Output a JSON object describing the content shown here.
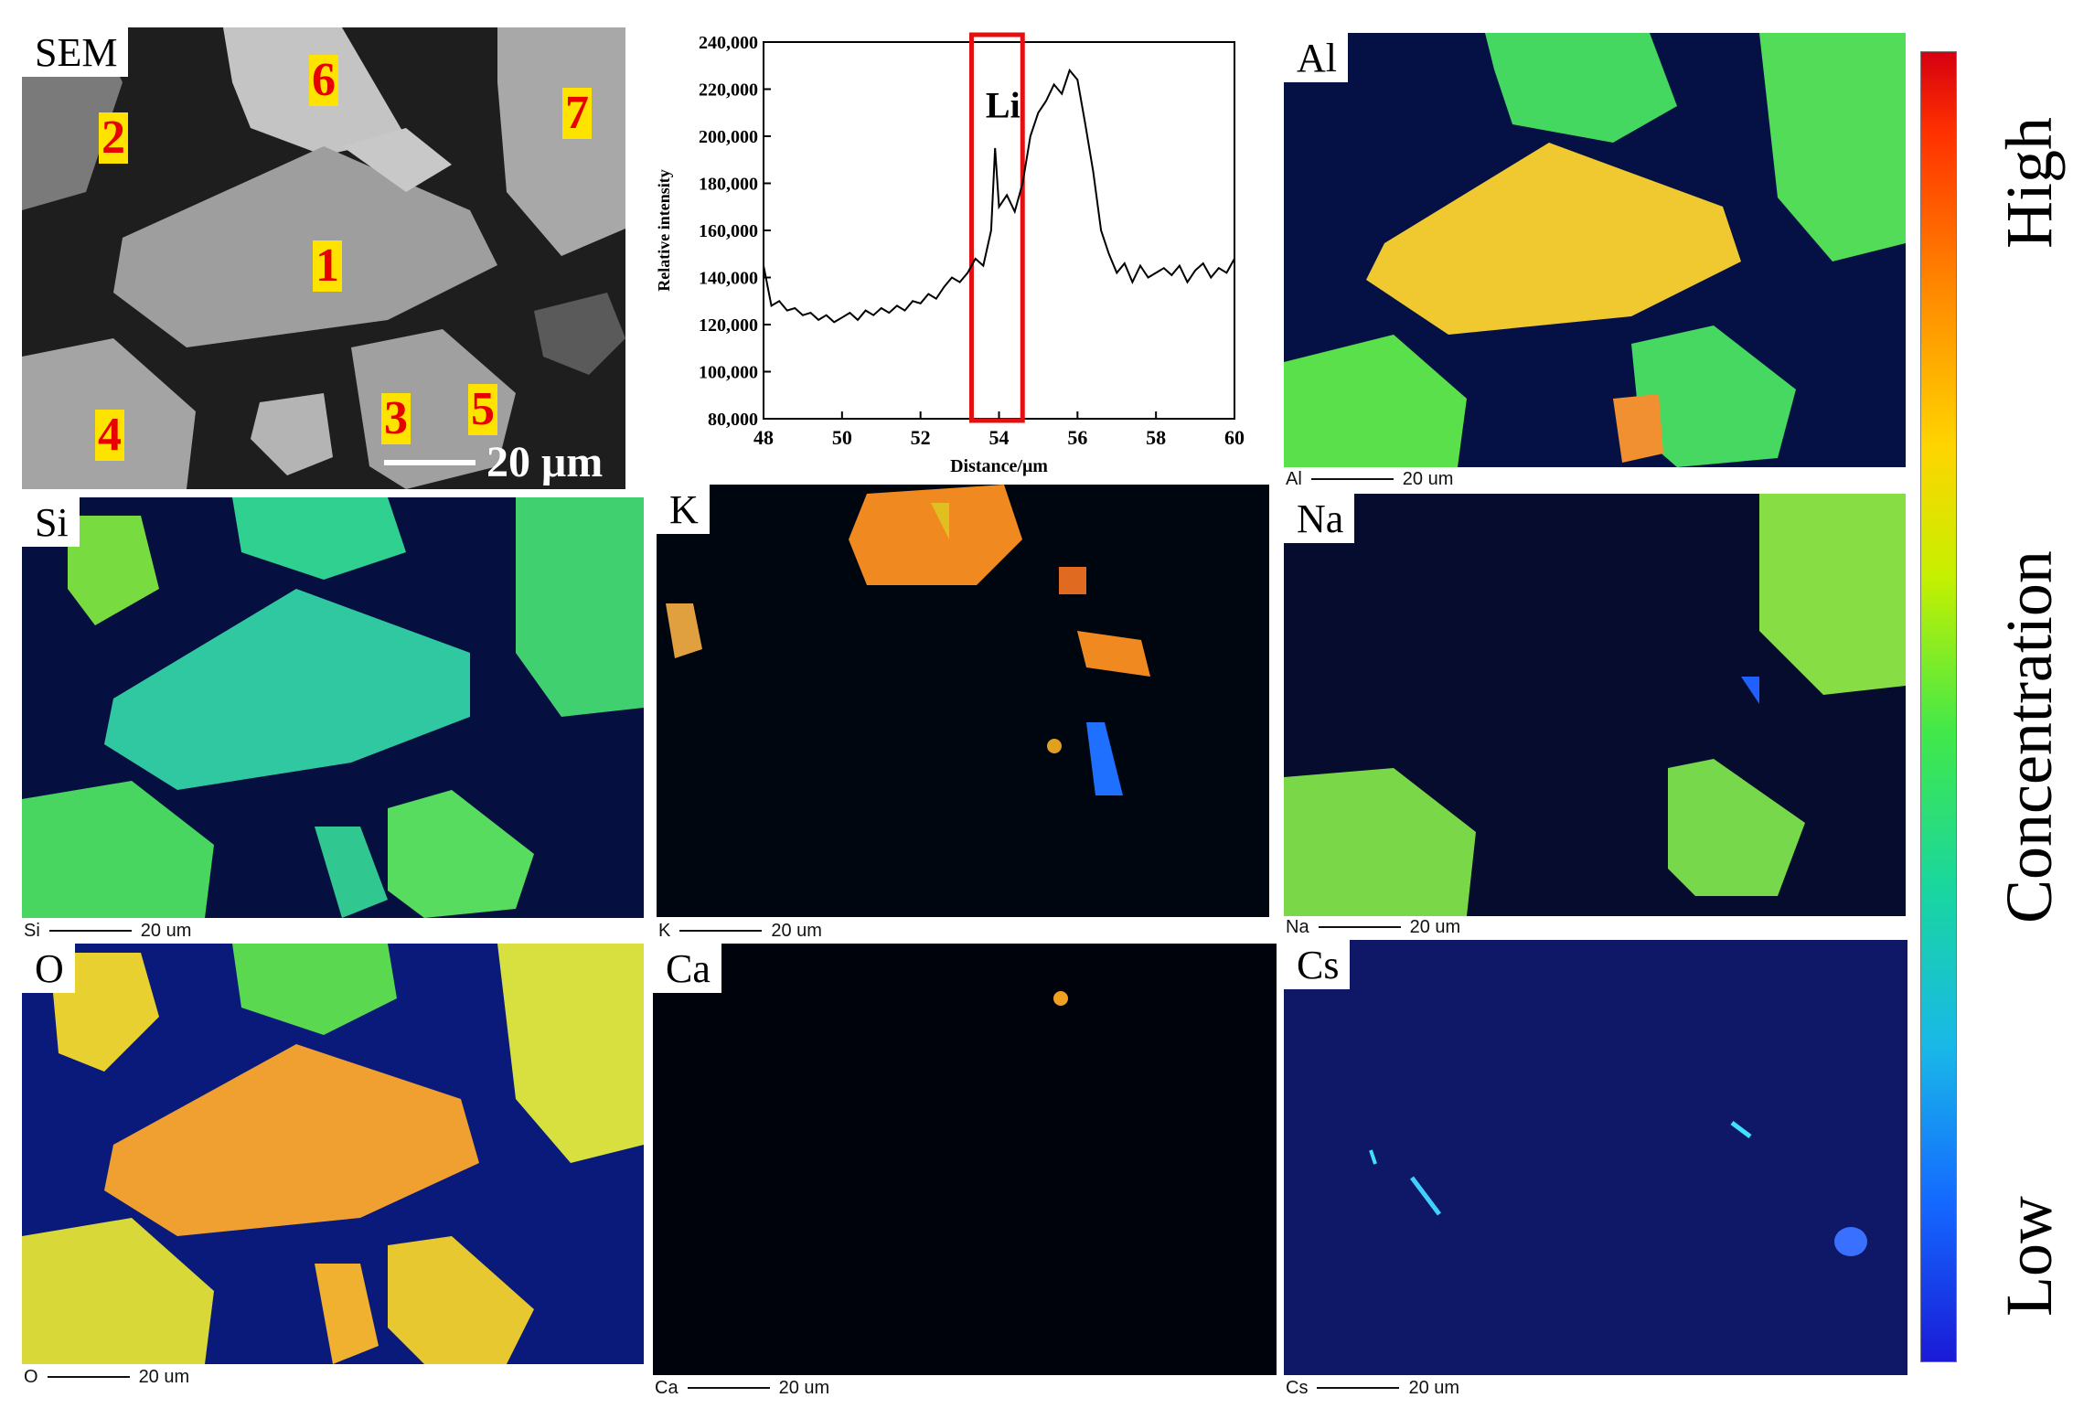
{
  "sem": {
    "label": "SEM",
    "scalebar": "20 μm",
    "numbers": [
      "1",
      "2",
      "3",
      "4",
      "5",
      "6",
      "7"
    ]
  },
  "chart_data": {
    "type": "line",
    "title": "",
    "xlabel": "Distance/μm",
    "ylabel": "Relative intensity",
    "xlim": [
      48,
      60
    ],
    "ylim": [
      80000,
      240000
    ],
    "x_ticks": [
      "48",
      "50",
      "52",
      "54",
      "56",
      "58",
      "60"
    ],
    "y_ticks": [
      "80,000",
      "100,000",
      "120,000",
      "140,000",
      "160,000",
      "180,000",
      "200,000",
      "220,000",
      "240,000"
    ],
    "annotation": "Li",
    "highlight_x": [
      53.3,
      54.6
    ],
    "series": [
      {
        "x": [
          48.0,
          48.2,
          48.4,
          48.6,
          48.8,
          49.0,
          49.2,
          49.4,
          49.6,
          49.8,
          50.0,
          50.2,
          50.4,
          50.6,
          50.8,
          51.0,
          51.2,
          51.4,
          51.6,
          51.8,
          52.0,
          52.2,
          52.4,
          52.6,
          52.8,
          53.0,
          53.2,
          53.4,
          53.6,
          53.8,
          53.9,
          54.0,
          54.2,
          54.4,
          54.6,
          54.8,
          55.0,
          55.2,
          55.4,
          55.6,
          55.8,
          56.0,
          56.2,
          56.4,
          56.6,
          56.8,
          57.0,
          57.2,
          57.4,
          57.6,
          57.8,
          58.0,
          58.2,
          58.4,
          58.6,
          58.8,
          59.0,
          59.2,
          59.4,
          59.6,
          59.8,
          60.0
        ],
        "y": [
          145000,
          128000,
          130000,
          126000,
          127000,
          124000,
          125000,
          122000,
          124000,
          121000,
          123000,
          125000,
          122000,
          126000,
          124000,
          127000,
          125000,
          128000,
          126000,
          130000,
          129000,
          133000,
          131000,
          136000,
          140000,
          138000,
          142000,
          148000,
          145000,
          160000,
          195000,
          170000,
          175000,
          168000,
          180000,
          200000,
          210000,
          215000,
          222000,
          218000,
          228000,
          224000,
          205000,
          185000,
          160000,
          150000,
          142000,
          146000,
          138000,
          145000,
          140000,
          142000,
          144000,
          141000,
          145000,
          138000,
          143000,
          146000,
          140000,
          144000,
          142000,
          148000
        ]
      }
    ]
  },
  "panels": {
    "al": {
      "label": "Al",
      "scale_prefix": "Al",
      "scale": "20 um"
    },
    "si": {
      "label": "Si",
      "scale_prefix": "Si",
      "scale": "20 um"
    },
    "k": {
      "label": "K",
      "scale_prefix": "K",
      "scale": "20 um"
    },
    "na": {
      "label": "Na",
      "scale_prefix": "Na",
      "scale": "20 um"
    },
    "o": {
      "label": "O",
      "scale_prefix": "O",
      "scale": "20 um"
    },
    "ca": {
      "label": "Ca",
      "scale_prefix": "Ca",
      "scale": "20 um"
    },
    "cs": {
      "label": "Cs",
      "scale_prefix": "Cs",
      "scale": "20 um"
    }
  },
  "colorbar": {
    "high": "High",
    "concentration": "Concentration",
    "low": "Low"
  }
}
